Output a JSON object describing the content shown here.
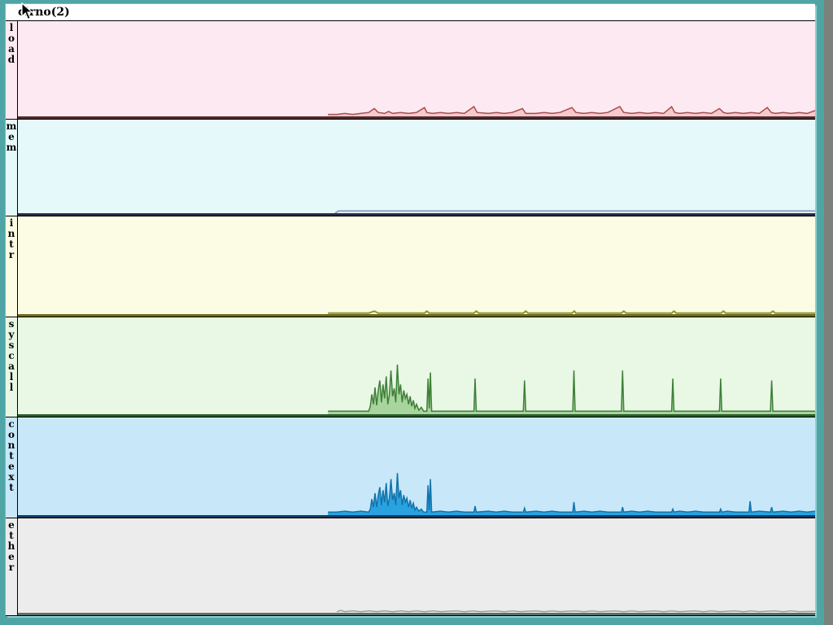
{
  "window": {
    "title": "cirno(2)",
    "frame_color": "#4fa5a6",
    "frame_highlight": "#8ecfd0",
    "titlebar_bg": "#ffffff",
    "title_color": "#000000",
    "desktop_color": "#7b817b"
  },
  "strips": [
    {
      "label": "load",
      "bg": "#fde9f1",
      "fill": "#f6c9cd",
      "stroke": "#a64d4d",
      "baseline_color": "#4f2b2d",
      "line_width": 1.5,
      "points": [
        [
          0.389,
          2
        ],
        [
          0.4,
          2
        ],
        [
          0.41,
          3
        ],
        [
          0.42,
          2
        ],
        [
          0.43,
          3
        ],
        [
          0.44,
          4
        ],
        [
          0.447,
          8
        ],
        [
          0.452,
          4
        ],
        [
          0.46,
          3
        ],
        [
          0.465,
          5
        ],
        [
          0.47,
          3
        ],
        [
          0.48,
          4
        ],
        [
          0.49,
          3
        ],
        [
          0.5,
          4
        ],
        [
          0.51,
          9
        ],
        [
          0.513,
          4
        ],
        [
          0.52,
          3
        ],
        [
          0.53,
          4
        ],
        [
          0.54,
          3
        ],
        [
          0.55,
          4
        ],
        [
          0.56,
          3
        ],
        [
          0.572,
          10
        ],
        [
          0.576,
          4
        ],
        [
          0.59,
          3
        ],
        [
          0.6,
          4
        ],
        [
          0.61,
          3
        ],
        [
          0.62,
          4
        ],
        [
          0.633,
          8
        ],
        [
          0.637,
          3
        ],
        [
          0.65,
          3
        ],
        [
          0.66,
          4
        ],
        [
          0.67,
          3
        ],
        [
          0.68,
          4
        ],
        [
          0.695,
          9
        ],
        [
          0.7,
          4
        ],
        [
          0.71,
          3
        ],
        [
          0.72,
          4
        ],
        [
          0.73,
          3
        ],
        [
          0.74,
          4
        ],
        [
          0.755,
          10
        ],
        [
          0.76,
          4
        ],
        [
          0.77,
          3
        ],
        [
          0.78,
          4
        ],
        [
          0.79,
          3
        ],
        [
          0.8,
          4
        ],
        [
          0.81,
          3
        ],
        [
          0.82,
          10
        ],
        [
          0.824,
          4
        ],
        [
          0.83,
          3
        ],
        [
          0.84,
          4
        ],
        [
          0.85,
          3
        ],
        [
          0.86,
          4
        ],
        [
          0.87,
          3
        ],
        [
          0.88,
          8
        ],
        [
          0.885,
          4
        ],
        [
          0.89,
          3
        ],
        [
          0.9,
          4
        ],
        [
          0.91,
          3
        ],
        [
          0.92,
          4
        ],
        [
          0.93,
          3
        ],
        [
          0.94,
          9
        ],
        [
          0.945,
          4
        ],
        [
          0.95,
          3
        ],
        [
          0.96,
          4
        ],
        [
          0.97,
          3
        ],
        [
          0.98,
          4
        ],
        [
          0.99,
          3
        ],
        [
          1.0,
          6
        ]
      ]
    },
    {
      "label": "mem",
      "bg": "#e6f9fa",
      "fill": "none",
      "stroke": "#97a1c2",
      "baseline_color": "#2a2a4a",
      "line_width": 2,
      "points": [
        [
          0.398,
          0
        ],
        [
          0.402,
          2.3
        ],
        [
          0.55,
          2.3
        ],
        [
          0.75,
          2.3
        ],
        [
          1.0,
          2.3
        ]
      ]
    },
    {
      "label": "intr",
      "bg": "#fbfce3",
      "fill": "none",
      "stroke": "#8f9431",
      "baseline_color": "#6b6b1a",
      "line_width": 2,
      "points": [
        [
          0.389,
          1
        ],
        [
          0.44,
          1
        ],
        [
          0.447,
          3
        ],
        [
          0.452,
          1
        ],
        [
          0.51,
          1
        ],
        [
          0.513,
          3
        ],
        [
          0.516,
          1
        ],
        [
          0.572,
          1
        ],
        [
          0.575,
          3
        ],
        [
          0.578,
          1
        ],
        [
          0.634,
          1
        ],
        [
          0.637,
          3
        ],
        [
          0.64,
          1
        ],
        [
          0.695,
          1
        ],
        [
          0.698,
          3
        ],
        [
          0.7,
          1
        ],
        [
          0.757,
          1
        ],
        [
          0.76,
          3
        ],
        [
          0.763,
          1
        ],
        [
          0.82,
          1
        ],
        [
          0.823,
          3
        ],
        [
          0.826,
          1
        ],
        [
          0.882,
          1
        ],
        [
          0.885,
          3
        ],
        [
          0.888,
          1
        ],
        [
          0.944,
          1
        ],
        [
          0.947,
          3
        ],
        [
          0.95,
          1
        ],
        [
          1.0,
          1
        ]
      ]
    },
    {
      "label": "syscall",
      "bg": "#e9f7e5",
      "fill": "#a8d49e",
      "stroke": "#3e8038",
      "baseline_color": "#2c5c28",
      "line_width": 1.5,
      "points": [
        [
          0.389,
          3
        ],
        [
          0.44,
          3
        ],
        [
          0.442,
          8
        ],
        [
          0.444,
          20
        ],
        [
          0.446,
          10
        ],
        [
          0.448,
          27
        ],
        [
          0.45,
          9
        ],
        [
          0.452,
          24
        ],
        [
          0.454,
          34
        ],
        [
          0.456,
          12
        ],
        [
          0.458,
          30
        ],
        [
          0.46,
          16
        ],
        [
          0.462,
          38
        ],
        [
          0.464,
          10
        ],
        [
          0.466,
          20
        ],
        [
          0.468,
          44
        ],
        [
          0.47,
          18
        ],
        [
          0.472,
          26
        ],
        [
          0.474,
          12
        ],
        [
          0.476,
          50
        ],
        [
          0.478,
          20
        ],
        [
          0.48,
          30
        ],
        [
          0.482,
          12
        ],
        [
          0.484,
          24
        ],
        [
          0.486,
          16
        ],
        [
          0.488,
          20
        ],
        [
          0.49,
          10
        ],
        [
          0.492,
          18
        ],
        [
          0.494,
          8
        ],
        [
          0.496,
          14
        ],
        [
          0.498,
          6
        ],
        [
          0.5,
          10
        ],
        [
          0.503,
          4
        ],
        [
          0.506,
          7
        ],
        [
          0.509,
          3
        ],
        [
          0.513,
          3
        ],
        [
          0.5145,
          36
        ],
        [
          0.516,
          6
        ],
        [
          0.5175,
          42
        ],
        [
          0.519,
          3
        ],
        [
          0.572,
          3
        ],
        [
          0.5735,
          36
        ],
        [
          0.575,
          3
        ],
        [
          0.634,
          3
        ],
        [
          0.6355,
          34
        ],
        [
          0.637,
          3
        ],
        [
          0.696,
          3
        ],
        [
          0.6975,
          44
        ],
        [
          0.699,
          3
        ],
        [
          0.757,
          3
        ],
        [
          0.7585,
          44
        ],
        [
          0.76,
          3
        ],
        [
          0.82,
          3
        ],
        [
          0.8215,
          36
        ],
        [
          0.823,
          3
        ],
        [
          0.88,
          3
        ],
        [
          0.8815,
          36
        ],
        [
          0.883,
          3
        ],
        [
          0.944,
          3
        ],
        [
          0.9455,
          34
        ],
        [
          0.947,
          3
        ],
        [
          1.0,
          3
        ]
      ]
    },
    {
      "label": "context",
      "bg": "#c8e8fa",
      "fill": "#29a3e0",
      "stroke": "#1273ab",
      "baseline_color": "#143a5e",
      "line_width": 1.5,
      "points": [
        [
          0.389,
          3
        ],
        [
          0.4,
          3
        ],
        [
          0.41,
          4
        ],
        [
          0.42,
          3
        ],
        [
          0.43,
          4
        ],
        [
          0.44,
          3
        ],
        [
          0.442,
          6
        ],
        [
          0.444,
          16
        ],
        [
          0.446,
          8
        ],
        [
          0.448,
          22
        ],
        [
          0.45,
          8
        ],
        [
          0.452,
          20
        ],
        [
          0.454,
          28
        ],
        [
          0.456,
          10
        ],
        [
          0.458,
          25
        ],
        [
          0.46,
          13
        ],
        [
          0.462,
          32
        ],
        [
          0.464,
          9
        ],
        [
          0.466,
          17
        ],
        [
          0.468,
          36
        ],
        [
          0.47,
          15
        ],
        [
          0.472,
          22
        ],
        [
          0.474,
          10
        ],
        [
          0.476,
          42
        ],
        [
          0.478,
          17
        ],
        [
          0.48,
          25
        ],
        [
          0.482,
          10
        ],
        [
          0.484,
          20
        ],
        [
          0.486,
          13
        ],
        [
          0.488,
          17
        ],
        [
          0.49,
          8
        ],
        [
          0.492,
          15
        ],
        [
          0.494,
          7
        ],
        [
          0.496,
          12
        ],
        [
          0.498,
          5
        ],
        [
          0.5,
          8
        ],
        [
          0.503,
          4
        ],
        [
          0.506,
          6
        ],
        [
          0.509,
          3
        ],
        [
          0.513,
          3
        ],
        [
          0.5145,
          30
        ],
        [
          0.516,
          5
        ],
        [
          0.5175,
          36
        ],
        [
          0.519,
          3
        ],
        [
          0.53,
          4
        ],
        [
          0.54,
          3
        ],
        [
          0.55,
          4
        ],
        [
          0.56,
          3
        ],
        [
          0.572,
          3
        ],
        [
          0.5735,
          9
        ],
        [
          0.575,
          3
        ],
        [
          0.59,
          4
        ],
        [
          0.6,
          3
        ],
        [
          0.61,
          4
        ],
        [
          0.62,
          3
        ],
        [
          0.634,
          3
        ],
        [
          0.6355,
          7
        ],
        [
          0.637,
          3
        ],
        [
          0.65,
          4
        ],
        [
          0.66,
          3
        ],
        [
          0.67,
          4
        ],
        [
          0.68,
          3
        ],
        [
          0.696,
          3
        ],
        [
          0.6975,
          13
        ],
        [
          0.699,
          3
        ],
        [
          0.71,
          4
        ],
        [
          0.72,
          3
        ],
        [
          0.73,
          4
        ],
        [
          0.74,
          3
        ],
        [
          0.757,
          3
        ],
        [
          0.7585,
          8
        ],
        [
          0.76,
          3
        ],
        [
          0.77,
          4
        ],
        [
          0.78,
          3
        ],
        [
          0.79,
          4
        ],
        [
          0.8,
          3
        ],
        [
          0.82,
          3
        ],
        [
          0.8215,
          6
        ],
        [
          0.823,
          3
        ],
        [
          0.83,
          4
        ],
        [
          0.84,
          3
        ],
        [
          0.85,
          4
        ],
        [
          0.86,
          3
        ],
        [
          0.88,
          3
        ],
        [
          0.8815,
          6
        ],
        [
          0.883,
          3
        ],
        [
          0.89,
          4
        ],
        [
          0.9,
          3
        ],
        [
          0.917,
          3
        ],
        [
          0.9185,
          14
        ],
        [
          0.92,
          3
        ],
        [
          0.93,
          4
        ],
        [
          0.944,
          3
        ],
        [
          0.9455,
          8
        ],
        [
          0.947,
          3
        ],
        [
          0.96,
          4
        ],
        [
          0.97,
          3
        ],
        [
          0.98,
          4
        ],
        [
          0.99,
          3
        ],
        [
          1.0,
          4
        ]
      ]
    },
    {
      "label": "ether",
      "bg": "#ececec",
      "fill": "none",
      "stroke": "#93a19d",
      "baseline_color": "#5c6e6a",
      "line_width": 1.5,
      "points": [
        [
          0.4,
          1
        ],
        [
          0.405,
          2.5
        ],
        [
          0.41,
          1.2
        ],
        [
          0.42,
          2
        ],
        [
          0.43,
          1
        ],
        [
          0.44,
          2
        ],
        [
          0.45,
          1.2
        ],
        [
          0.46,
          2
        ],
        [
          0.47,
          1
        ],
        [
          0.48,
          2
        ],
        [
          0.49,
          1.2
        ],
        [
          0.5,
          2
        ],
        [
          0.51,
          1
        ],
        [
          0.52,
          2
        ],
        [
          0.53,
          1.2
        ],
        [
          0.55,
          2
        ],
        [
          0.56,
          1
        ],
        [
          0.57,
          2
        ],
        [
          0.58,
          1.2
        ],
        [
          0.6,
          2
        ],
        [
          0.61,
          1
        ],
        [
          0.62,
          2
        ],
        [
          0.63,
          1.2
        ],
        [
          0.65,
          2
        ],
        [
          0.66,
          1
        ],
        [
          0.67,
          2
        ],
        [
          0.68,
          1.2
        ],
        [
          0.7,
          2
        ],
        [
          0.71,
          1
        ],
        [
          0.72,
          2
        ],
        [
          0.73,
          1.2
        ],
        [
          0.75,
          2
        ],
        [
          0.76,
          1
        ],
        [
          0.77,
          2
        ],
        [
          0.78,
          1.2
        ],
        [
          0.8,
          2
        ],
        [
          0.81,
          1
        ],
        [
          0.82,
          2
        ],
        [
          0.83,
          1.2
        ],
        [
          0.85,
          2
        ],
        [
          0.86,
          1
        ],
        [
          0.87,
          2
        ],
        [
          0.88,
          1.2
        ],
        [
          0.9,
          2
        ],
        [
          0.91,
          1
        ],
        [
          0.92,
          2
        ],
        [
          0.93,
          1.2
        ],
        [
          0.95,
          2
        ],
        [
          0.96,
          1
        ],
        [
          0.97,
          2
        ],
        [
          0.98,
          1.2
        ],
        [
          1.0,
          1.5
        ]
      ]
    }
  ]
}
